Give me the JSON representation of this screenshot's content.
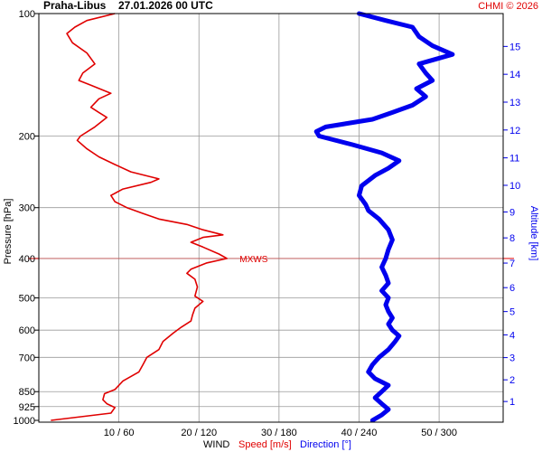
{
  "header": {
    "station": "Praha-Libus",
    "datetime": "27.01.2026 00 UTC",
    "credit": "CHMI © 2026"
  },
  "colors": {
    "speed": "#e00000",
    "direction": "#0000ee",
    "grid": "#9a9a9a",
    "mxws": "#e00000"
  },
  "chart_data": {
    "type": "line",
    "ylabel": "Pressure [hPa]",
    "y2label": "Altitude [km]",
    "pressure_ticks": [
      100,
      200,
      300,
      400,
      500,
      600,
      700,
      850,
      925,
      1000
    ],
    "altitude_ticks": [
      1,
      2,
      3,
      4,
      5,
      6,
      7,
      8,
      9,
      10,
      11,
      12,
      13,
      14,
      15
    ],
    "wind_ticks": [
      "10 / 60",
      "20 / 120",
      "30 / 180",
      "40 / 240",
      "50 / 300"
    ],
    "wind_tick_values": [
      10,
      20,
      30,
      40,
      50
    ],
    "xlabel": {
      "prefix": "WIND",
      "speed": "Speed [m/s]",
      "direction": "Direction [°]"
    },
    "x_range_speed_ms": [
      0,
      58
    ],
    "x_range_direction_deg": [
      0,
      348
    ],
    "pressure_range_hPa": [
      100,
      1000
    ],
    "mxws_label": "MXWS",
    "mxws_pressure_hPa": 400,
    "series": [
      {
        "name": "Speed [m/s]",
        "unit": "m/s",
        "points": [
          [
            1000,
            1.5
          ],
          [
            960,
            9.0
          ],
          [
            930,
            9.5
          ],
          [
            910,
            8.5
          ],
          [
            890,
            8.0
          ],
          [
            860,
            8.2
          ],
          [
            840,
            9.5
          ],
          [
            800,
            10.5
          ],
          [
            760,
            12.5
          ],
          [
            730,
            13.0
          ],
          [
            700,
            13.5
          ],
          [
            670,
            15.0
          ],
          [
            640,
            15.5
          ],
          [
            610,
            16.8
          ],
          [
            590,
            17.8
          ],
          [
            570,
            19.0
          ],
          [
            550,
            19.2
          ],
          [
            530,
            19.5
          ],
          [
            510,
            20.5
          ],
          [
            495,
            19.5
          ],
          [
            470,
            19.8
          ],
          [
            450,
            19.5
          ],
          [
            435,
            18.5
          ],
          [
            425,
            19.0
          ],
          [
            410,
            21.0
          ],
          [
            400,
            23.5
          ],
          [
            390,
            22.5
          ],
          [
            375,
            20.5
          ],
          [
            365,
            19.0
          ],
          [
            355,
            20.5
          ],
          [
            350,
            23.0
          ],
          [
            340,
            20.5
          ],
          [
            330,
            18.5
          ],
          [
            320,
            15.0
          ],
          [
            310,
            13.0
          ],
          [
            300,
            11.0
          ],
          [
            290,
            9.5
          ],
          [
            280,
            9.0
          ],
          [
            270,
            10.5
          ],
          [
            260,
            14.0
          ],
          [
            255,
            15.0
          ],
          [
            245,
            11.5
          ],
          [
            235,
            9.5
          ],
          [
            225,
            7.5
          ],
          [
            215,
            6.0
          ],
          [
            205,
            4.8
          ],
          [
            200,
            5.2
          ],
          [
            190,
            7.0
          ],
          [
            180,
            8.5
          ],
          [
            175,
            7.5
          ],
          [
            170,
            6.5
          ],
          [
            162,
            7.5
          ],
          [
            157,
            9.0
          ],
          [
            150,
            6.5
          ],
          [
            146,
            5.0
          ],
          [
            140,
            5.5
          ],
          [
            133,
            7.0
          ],
          [
            125,
            6.0
          ],
          [
            118,
            4.2
          ],
          [
            112,
            3.5
          ],
          [
            108,
            4.5
          ],
          [
            104,
            6.0
          ],
          [
            100,
            9.5
          ]
        ]
      },
      {
        "name": "Direction [°]",
        "unit": "deg",
        "points": [
          [
            1000,
            250
          ],
          [
            970,
            257
          ],
          [
            940,
            262
          ],
          [
            910,
            257
          ],
          [
            880,
            252
          ],
          [
            850,
            257
          ],
          [
            820,
            262
          ],
          [
            790,
            252
          ],
          [
            760,
            247
          ],
          [
            730,
            250
          ],
          [
            700,
            255
          ],
          [
            670,
            262
          ],
          [
            640,
            267
          ],
          [
            620,
            270
          ],
          [
            600,
            265
          ],
          [
            580,
            262
          ],
          [
            560,
            265
          ],
          [
            540,
            262
          ],
          [
            520,
            260
          ],
          [
            500,
            262
          ],
          [
            480,
            257
          ],
          [
            460,
            262
          ],
          [
            440,
            260
          ],
          [
            420,
            257
          ],
          [
            400,
            260
          ],
          [
            380,
            262
          ],
          [
            360,
            265
          ],
          [
            340,
            262
          ],
          [
            320,
            255
          ],
          [
            305,
            247
          ],
          [
            295,
            245
          ],
          [
            280,
            240
          ],
          [
            265,
            242
          ],
          [
            250,
            252
          ],
          [
            240,
            262
          ],
          [
            230,
            270
          ],
          [
            220,
            257
          ],
          [
            210,
            235
          ],
          [
            200,
            210
          ],
          [
            195,
            208
          ],
          [
            190,
            215
          ],
          [
            182,
            250
          ],
          [
            175,
            265
          ],
          [
            168,
            280
          ],
          [
            160,
            290
          ],
          [
            153,
            283
          ],
          [
            146,
            295
          ],
          [
            140,
            290
          ],
          [
            133,
            285
          ],
          [
            126,
            310
          ],
          [
            120,
            295
          ],
          [
            114,
            285
          ],
          [
            108,
            280
          ],
          [
            104,
            260
          ],
          [
            100,
            240
          ]
        ]
      }
    ]
  }
}
